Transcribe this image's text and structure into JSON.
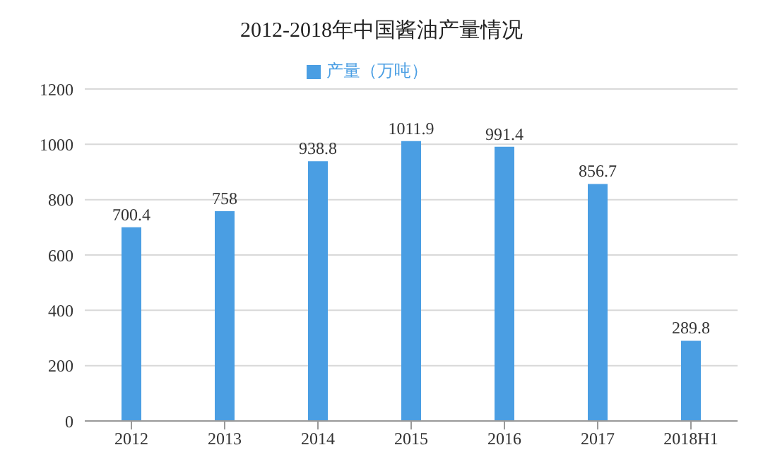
{
  "chart_data": {
    "type": "bar",
    "title": "2012-2018年中国酱油产量情况",
    "categories": [
      "2012",
      "2013",
      "2014",
      "2015",
      "2016",
      "2017",
      "2018H1"
    ],
    "series": [
      {
        "name": "产量（万吨）",
        "color": "#4a9ee3",
        "values": [
          700.4,
          758,
          938.8,
          1011.9,
          991.4,
          856.7,
          289.8
        ]
      }
    ],
    "ylim": [
      0,
      1200
    ],
    "yticks": [
      0,
      200,
      400,
      600,
      800,
      1000,
      1200
    ],
    "grid": "y",
    "legend": "top",
    "data_labels": true
  }
}
